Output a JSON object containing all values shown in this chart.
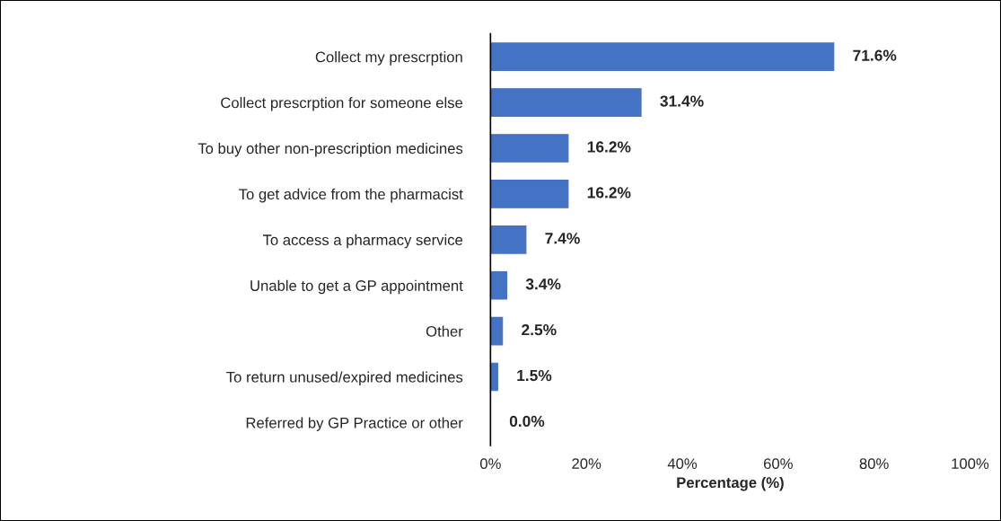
{
  "chart_data": {
    "type": "bar",
    "orientation": "horizontal",
    "categories": [
      "Collect my prescrption",
      "Collect prescrption for someone else",
      "To buy other non-prescription medicines",
      "To get advice from the pharmacist",
      "To access a pharmacy service",
      "Unable to get a GP appointment",
      "Other",
      "To return unused/expired medicines",
      "Referred by GP Practice or other"
    ],
    "values": [
      71.6,
      31.4,
      16.2,
      16.2,
      7.4,
      3.4,
      2.5,
      1.5,
      0.0
    ],
    "value_labels": [
      "71.6%",
      "31.4%",
      "16.2%",
      "16.2%",
      "7.4%",
      "3.4%",
      "2.5%",
      "1.5%",
      "0.0%"
    ],
    "color": "#4472c4",
    "xlabel": "Percentage (%)",
    "xlim": [
      0,
      100
    ],
    "xticks": [
      {
        "value": 0,
        "label": "0%"
      },
      {
        "value": 20,
        "label": "20%"
      },
      {
        "value": 40,
        "label": "40%"
      },
      {
        "value": 60,
        "label": "60%"
      },
      {
        "value": 80,
        "label": "80%"
      },
      {
        "value": 100,
        "label": "100%"
      }
    ],
    "grid": false,
    "legend": false
  }
}
